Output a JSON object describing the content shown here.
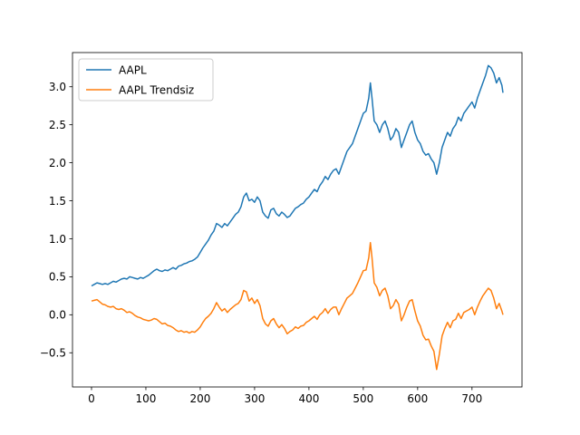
{
  "chart_data": {
    "type": "line",
    "title": "",
    "xlabel": "",
    "ylabel": "",
    "xlim": [
      -35,
      792
    ],
    "ylim": [
      -0.95,
      3.45
    ],
    "grid": false,
    "legend_position": "top-left",
    "x_ticks": [
      0,
      100,
      200,
      300,
      400,
      500,
      600,
      700
    ],
    "x_tick_labels": [
      "0",
      "100",
      "200",
      "300",
      "400",
      "500",
      "600",
      "700"
    ],
    "y_ticks": [
      -0.5,
      0.0,
      0.5,
      1.0,
      1.5,
      2.0,
      2.5,
      3.0
    ],
    "y_tick_labels": [
      "−0.5",
      "0.0",
      "0.5",
      "1.0",
      "1.5",
      "2.0",
      "2.5",
      "3.0"
    ],
    "series": [
      {
        "name": "AAPL",
        "color": "#1f77b4",
        "points": [
          [
            0,
            0.38
          ],
          [
            5,
            0.4
          ],
          [
            10,
            0.42
          ],
          [
            15,
            0.41
          ],
          [
            20,
            0.4
          ],
          [
            25,
            0.41
          ],
          [
            30,
            0.4
          ],
          [
            35,
            0.42
          ],
          [
            40,
            0.44
          ],
          [
            45,
            0.43
          ],
          [
            50,
            0.45
          ],
          [
            55,
            0.47
          ],
          [
            60,
            0.48
          ],
          [
            65,
            0.47
          ],
          [
            70,
            0.5
          ],
          [
            75,
            0.49
          ],
          [
            80,
            0.48
          ],
          [
            85,
            0.47
          ],
          [
            90,
            0.49
          ],
          [
            95,
            0.48
          ],
          [
            100,
            0.5
          ],
          [
            105,
            0.52
          ],
          [
            110,
            0.55
          ],
          [
            115,
            0.58
          ],
          [
            120,
            0.6
          ],
          [
            125,
            0.58
          ],
          [
            130,
            0.57
          ],
          [
            135,
            0.59
          ],
          [
            140,
            0.58
          ],
          [
            145,
            0.6
          ],
          [
            150,
            0.62
          ],
          [
            155,
            0.6
          ],
          [
            160,
            0.64
          ],
          [
            165,
            0.65
          ],
          [
            170,
            0.67
          ],
          [
            175,
            0.68
          ],
          [
            180,
            0.7
          ],
          [
            185,
            0.71
          ],
          [
            190,
            0.73
          ],
          [
            195,
            0.76
          ],
          [
            200,
            0.82
          ],
          [
            205,
            0.88
          ],
          [
            210,
            0.93
          ],
          [
            215,
            0.98
          ],
          [
            220,
            1.05
          ],
          [
            225,
            1.1
          ],
          [
            230,
            1.2
          ],
          [
            235,
            1.18
          ],
          [
            240,
            1.15
          ],
          [
            245,
            1.2
          ],
          [
            250,
            1.17
          ],
          [
            255,
            1.22
          ],
          [
            260,
            1.27
          ],
          [
            265,
            1.32
          ],
          [
            270,
            1.35
          ],
          [
            275,
            1.42
          ],
          [
            280,
            1.55
          ],
          [
            285,
            1.6
          ],
          [
            290,
            1.5
          ],
          [
            295,
            1.52
          ],
          [
            300,
            1.48
          ],
          [
            305,
            1.55
          ],
          [
            310,
            1.5
          ],
          [
            315,
            1.35
          ],
          [
            320,
            1.3
          ],
          [
            325,
            1.27
          ],
          [
            330,
            1.38
          ],
          [
            335,
            1.4
          ],
          [
            340,
            1.33
          ],
          [
            345,
            1.3
          ],
          [
            350,
            1.35
          ],
          [
            355,
            1.32
          ],
          [
            360,
            1.28
          ],
          [
            365,
            1.3
          ],
          [
            370,
            1.35
          ],
          [
            375,
            1.4
          ],
          [
            380,
            1.42
          ],
          [
            385,
            1.45
          ],
          [
            390,
            1.47
          ],
          [
            395,
            1.52
          ],
          [
            400,
            1.55
          ],
          [
            405,
            1.6
          ],
          [
            410,
            1.65
          ],
          [
            415,
            1.62
          ],
          [
            420,
            1.7
          ],
          [
            425,
            1.75
          ],
          [
            430,
            1.82
          ],
          [
            435,
            1.78
          ],
          [
            440,
            1.85
          ],
          [
            445,
            1.9
          ],
          [
            450,
            1.92
          ],
          [
            455,
            1.85
          ],
          [
            460,
            1.95
          ],
          [
            465,
            2.05
          ],
          [
            470,
            2.15
          ],
          [
            475,
            2.2
          ],
          [
            480,
            2.25
          ],
          [
            485,
            2.35
          ],
          [
            490,
            2.45
          ],
          [
            495,
            2.55
          ],
          [
            500,
            2.65
          ],
          [
            505,
            2.68
          ],
          [
            510,
            2.85
          ],
          [
            513,
            3.05
          ],
          [
            516,
            2.85
          ],
          [
            520,
            2.55
          ],
          [
            525,
            2.5
          ],
          [
            530,
            2.4
          ],
          [
            535,
            2.5
          ],
          [
            540,
            2.55
          ],
          [
            545,
            2.45
          ],
          [
            550,
            2.3
          ],
          [
            555,
            2.35
          ],
          [
            560,
            2.45
          ],
          [
            565,
            2.4
          ],
          [
            570,
            2.2
          ],
          [
            575,
            2.3
          ],
          [
            580,
            2.4
          ],
          [
            585,
            2.5
          ],
          [
            590,
            2.55
          ],
          [
            595,
            2.4
          ],
          [
            600,
            2.3
          ],
          [
            605,
            2.25
          ],
          [
            610,
            2.15
          ],
          [
            615,
            2.1
          ],
          [
            620,
            2.12
          ],
          [
            625,
            2.05
          ],
          [
            630,
            2.0
          ],
          [
            635,
            1.85
          ],
          [
            640,
            2.0
          ],
          [
            645,
            2.2
          ],
          [
            650,
            2.3
          ],
          [
            655,
            2.4
          ],
          [
            660,
            2.35
          ],
          [
            665,
            2.45
          ],
          [
            670,
            2.5
          ],
          [
            675,
            2.6
          ],
          [
            680,
            2.55
          ],
          [
            685,
            2.65
          ],
          [
            690,
            2.7
          ],
          [
            695,
            2.75
          ],
          [
            700,
            2.8
          ],
          [
            705,
            2.72
          ],
          [
            710,
            2.85
          ],
          [
            715,
            2.95
          ],
          [
            720,
            3.05
          ],
          [
            725,
            3.15
          ],
          [
            730,
            3.28
          ],
          [
            735,
            3.25
          ],
          [
            740,
            3.18
          ],
          [
            745,
            3.05
          ],
          [
            750,
            3.12
          ],
          [
            755,
            3.02
          ],
          [
            757,
            2.92
          ]
        ]
      },
      {
        "name": "AAPL Trendsiz",
        "color": "#ff7f0e",
        "points": [
          [
            0,
            0.18
          ],
          [
            5,
            0.19
          ],
          [
            10,
            0.2
          ],
          [
            15,
            0.17
          ],
          [
            20,
            0.14
          ],
          [
            25,
            0.13
          ],
          [
            30,
            0.11
          ],
          [
            35,
            0.1
          ],
          [
            40,
            0.11
          ],
          [
            45,
            0.08
          ],
          [
            50,
            0.07
          ],
          [
            55,
            0.08
          ],
          [
            60,
            0.06
          ],
          [
            65,
            0.03
          ],
          [
            70,
            0.04
          ],
          [
            75,
            0.02
          ],
          [
            80,
            -0.01
          ],
          [
            85,
            -0.03
          ],
          [
            90,
            -0.04
          ],
          [
            95,
            -0.06
          ],
          [
            100,
            -0.07
          ],
          [
            105,
            -0.08
          ],
          [
            110,
            -0.07
          ],
          [
            115,
            -0.05
          ],
          [
            120,
            -0.06
          ],
          [
            125,
            -0.09
          ],
          [
            130,
            -0.12
          ],
          [
            135,
            -0.11
          ],
          [
            140,
            -0.14
          ],
          [
            145,
            -0.15
          ],
          [
            150,
            -0.17
          ],
          [
            155,
            -0.2
          ],
          [
            160,
            -0.22
          ],
          [
            165,
            -0.21
          ],
          [
            170,
            -0.23
          ],
          [
            175,
            -0.22
          ],
          [
            180,
            -0.24
          ],
          [
            185,
            -0.22
          ],
          [
            190,
            -0.23
          ],
          [
            195,
            -0.2
          ],
          [
            200,
            -0.16
          ],
          [
            205,
            -0.1
          ],
          [
            210,
            -0.05
          ],
          [
            215,
            -0.02
          ],
          [
            220,
            0.02
          ],
          [
            225,
            0.08
          ],
          [
            230,
            0.16
          ],
          [
            235,
            0.1
          ],
          [
            240,
            0.05
          ],
          [
            245,
            0.08
          ],
          [
            250,
            0.03
          ],
          [
            255,
            0.07
          ],
          [
            260,
            0.1
          ],
          [
            265,
            0.13
          ],
          [
            270,
            0.15
          ],
          [
            275,
            0.2
          ],
          [
            280,
            0.32
          ],
          [
            285,
            0.3
          ],
          [
            290,
            0.18
          ],
          [
            295,
            0.22
          ],
          [
            300,
            0.15
          ],
          [
            305,
            0.2
          ],
          [
            310,
            0.12
          ],
          [
            315,
            -0.05
          ],
          [
            320,
            -0.12
          ],
          [
            325,
            -0.15
          ],
          [
            330,
            -0.08
          ],
          [
            335,
            -0.05
          ],
          [
            340,
            -0.12
          ],
          [
            345,
            -0.17
          ],
          [
            350,
            -0.13
          ],
          [
            355,
            -0.18
          ],
          [
            360,
            -0.25
          ],
          [
            365,
            -0.22
          ],
          [
            370,
            -0.2
          ],
          [
            375,
            -0.16
          ],
          [
            380,
            -0.18
          ],
          [
            385,
            -0.15
          ],
          [
            390,
            -0.14
          ],
          [
            395,
            -0.1
          ],
          [
            400,
            -0.08
          ],
          [
            405,
            -0.05
          ],
          [
            410,
            -0.02
          ],
          [
            415,
            -0.06
          ],
          [
            420,
            0.0
          ],
          [
            425,
            0.03
          ],
          [
            430,
            0.08
          ],
          [
            435,
            0.02
          ],
          [
            440,
            0.07
          ],
          [
            445,
            0.1
          ],
          [
            450,
            0.1
          ],
          [
            455,
            0.0
          ],
          [
            460,
            0.08
          ],
          [
            465,
            0.15
          ],
          [
            470,
            0.22
          ],
          [
            475,
            0.25
          ],
          [
            480,
            0.28
          ],
          [
            485,
            0.35
          ],
          [
            490,
            0.42
          ],
          [
            495,
            0.5
          ],
          [
            500,
            0.58
          ],
          [
            505,
            0.59
          ],
          [
            510,
            0.75
          ],
          [
            513,
            0.95
          ],
          [
            516,
            0.75
          ],
          [
            520,
            0.42
          ],
          [
            525,
            0.36
          ],
          [
            530,
            0.25
          ],
          [
            535,
            0.32
          ],
          [
            540,
            0.35
          ],
          [
            545,
            0.25
          ],
          [
            550,
            0.08
          ],
          [
            555,
            0.12
          ],
          [
            560,
            0.2
          ],
          [
            565,
            0.14
          ],
          [
            570,
            -0.08
          ],
          [
            575,
            0.0
          ],
          [
            580,
            0.1
          ],
          [
            585,
            0.18
          ],
          [
            590,
            0.2
          ],
          [
            595,
            0.05
          ],
          [
            600,
            -0.08
          ],
          [
            605,
            -0.15
          ],
          [
            610,
            -0.27
          ],
          [
            615,
            -0.33
          ],
          [
            620,
            -0.32
          ],
          [
            625,
            -0.41
          ],
          [
            630,
            -0.48
          ],
          [
            635,
            -0.72
          ],
          [
            640,
            -0.52
          ],
          [
            645,
            -0.28
          ],
          [
            650,
            -0.18
          ],
          [
            655,
            -0.1
          ],
          [
            660,
            -0.17
          ],
          [
            665,
            -0.08
          ],
          [
            670,
            -0.06
          ],
          [
            675,
            0.02
          ],
          [
            680,
            -0.05
          ],
          [
            685,
            0.03
          ],
          [
            690,
            0.05
          ],
          [
            695,
            0.07
          ],
          [
            700,
            0.1
          ],
          [
            705,
            0.0
          ],
          [
            710,
            0.1
          ],
          [
            715,
            0.18
          ],
          [
            720,
            0.25
          ],
          [
            725,
            0.3
          ],
          [
            730,
            0.35
          ],
          [
            735,
            0.32
          ],
          [
            740,
            0.22
          ],
          [
            745,
            0.08
          ],
          [
            750,
            0.15
          ],
          [
            755,
            0.05
          ],
          [
            757,
            0.0
          ]
        ]
      }
    ]
  }
}
